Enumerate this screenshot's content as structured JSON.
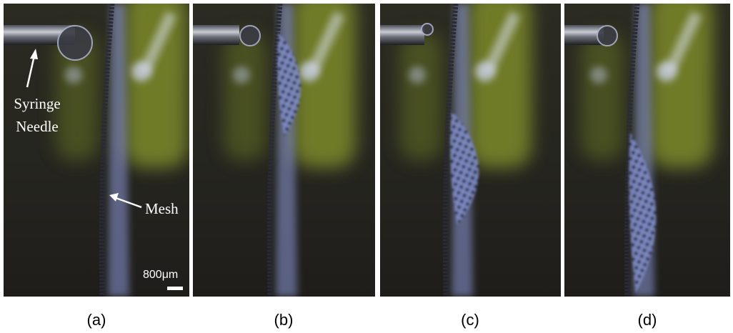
{
  "panels": [
    {
      "caption": "(a)"
    },
    {
      "caption": "(b)"
    },
    {
      "caption": "(c)"
    },
    {
      "caption": "(d)"
    }
  ],
  "annotations": {
    "needle": [
      "Syringe",
      "Needle"
    ],
    "mesh": "Mesh",
    "scale_bar": "800μm"
  }
}
